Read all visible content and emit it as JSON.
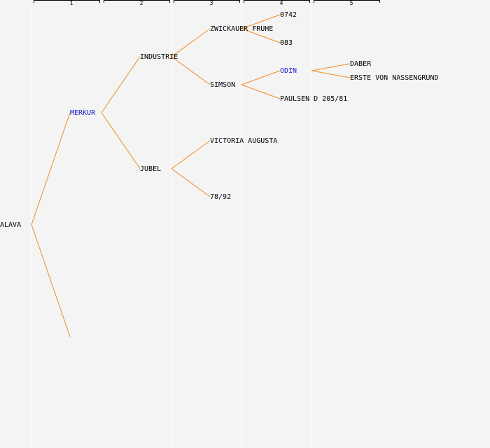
{
  "colors": {
    "background": "#f4f4f4",
    "edge": "#f28c1e",
    "text": "#000000",
    "highlight": "#1a1acd",
    "column_line": "#ffffff",
    "ruler": "#000000"
  },
  "columns": [
    {
      "label": "1"
    },
    {
      "label": "2"
    },
    {
      "label": "3"
    },
    {
      "label": "4"
    },
    {
      "label": "5"
    }
  ],
  "tree": {
    "root": {
      "label": "ALAVA",
      "highlight": false
    },
    "nodes": [
      {
        "id": "merkur",
        "label": "MERKUR",
        "highlight": true,
        "parent": "root"
      },
      {
        "id": "unknown",
        "label": "",
        "highlight": false,
        "parent": "root"
      },
      {
        "id": "industrie",
        "label": "INDUSTRIE",
        "highlight": false,
        "parent": "merkur"
      },
      {
        "id": "jubel",
        "label": "JUBEL",
        "highlight": false,
        "parent": "merkur"
      },
      {
        "id": "zwickauer",
        "label": "ZWICKAUER FRUHE",
        "highlight": false,
        "parent": "industrie"
      },
      {
        "id": "simson",
        "label": "SIMSON",
        "highlight": false,
        "parent": "industrie"
      },
      {
        "id": "victoria",
        "label": "VICTORIA AUGUSTA",
        "highlight": false,
        "parent": "jubel"
      },
      {
        "id": "n7892",
        "label": "78/92",
        "highlight": false,
        "parent": "jubel"
      },
      {
        "id": "n0742",
        "label": "0742",
        "highlight": false,
        "parent": "zwickauer"
      },
      {
        "id": "n083",
        "label": "083",
        "highlight": false,
        "parent": "zwickauer"
      },
      {
        "id": "odin",
        "label": "ODIN",
        "highlight": true,
        "parent": "simson"
      },
      {
        "id": "paulsen",
        "label": "PAULSEN D 205/81",
        "highlight": false,
        "parent": "simson"
      },
      {
        "id": "daber",
        "label": "DABER",
        "highlight": false,
        "parent": "odin"
      },
      {
        "id": "erste",
        "label": "ERSTE VON NASSENGRUND",
        "highlight": false,
        "parent": "odin"
      }
    ]
  }
}
